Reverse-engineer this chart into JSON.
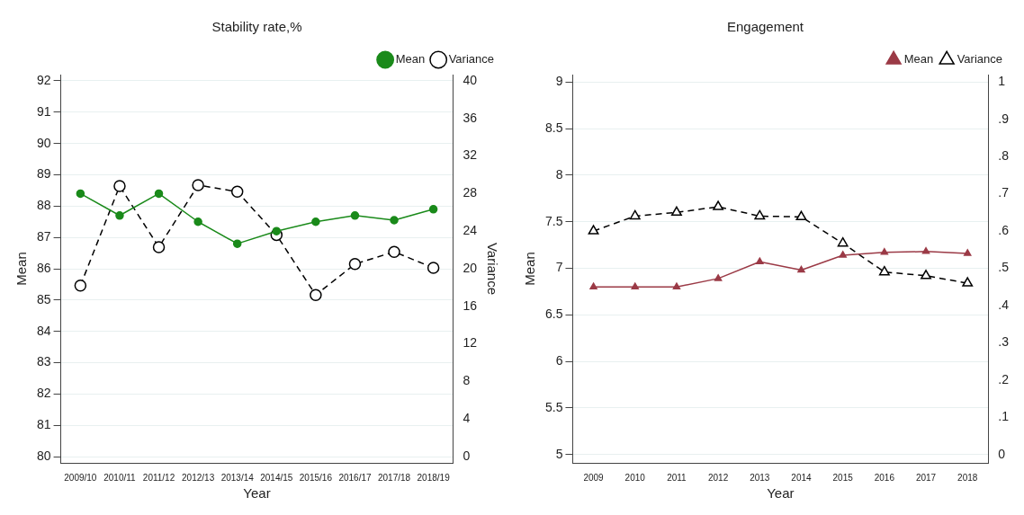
{
  "chart_data": [
    {
      "type": "line",
      "title": "Stability rate,%",
      "xlabel": "Year",
      "ylabel": "Mean",
      "y2label": "Variance",
      "categories": [
        "2009/10",
        "2010/11",
        "2011/12",
        "2012/13",
        "2013/14",
        "2014/15",
        "2015/16",
        "2016/17",
        "2017/18",
        "2018/19"
      ],
      "series": [
        {
          "name": "Mean",
          "color": "#1a8a1a",
          "marker": "circle",
          "line_style": "solid",
          "values": [
            88.4,
            87.7,
            88.4,
            87.5,
            86.8,
            87.2,
            87.5,
            87.7,
            87.55,
            87.9
          ]
        },
        {
          "name": "Variance",
          "color": "#000000",
          "marker": "circle",
          "line_style": "dashed",
          "axis": "y2",
          "values": [
            18.2,
            28.8,
            22.3,
            28.9,
            28.2,
            23.6,
            17.2,
            20.5,
            21.8,
            20.1
          ]
        }
      ],
      "ylim": [
        79.8,
        92.2
      ],
      "yticks": [
        80,
        81,
        82,
        83,
        84,
        85,
        86,
        87,
        88,
        89,
        90,
        91,
        92
      ],
      "y2lim": [
        -0.67,
        40.67
      ],
      "y2ticks": [
        0,
        4,
        8,
        12,
        16,
        20,
        24,
        28,
        32,
        36,
        40
      ],
      "grid": "y",
      "legend": "top right"
    },
    {
      "type": "line",
      "title": "Engagement",
      "xlabel": "Year",
      "ylabel": "Mean",
      "categories": [
        "2009",
        "2010",
        "2011",
        "2012",
        "2013",
        "2014",
        "2015",
        "2016",
        "2017",
        "2018"
      ],
      "series": [
        {
          "name": "Mean",
          "color": "#9b3a46",
          "marker": "triangle",
          "line_style": "solid",
          "values": [
            6.8,
            6.8,
            6.8,
            6.89,
            7.07,
            6.98,
            7.14,
            7.17,
            7.18,
            7.16
          ]
        },
        {
          "name": "Variance",
          "color": "#000000",
          "marker": "triangle",
          "line_style": "dashed",
          "axis": "y2",
          "values": [
            0.6,
            0.64,
            0.65,
            0.665,
            0.64,
            0.638,
            0.567,
            0.49,
            0.48,
            0.46
          ]
        }
      ],
      "ylim": [
        4.91,
        9.08
      ],
      "yticks": [
        5,
        5.5,
        6,
        6.5,
        7,
        7.5,
        8,
        8.5,
        9
      ],
      "y2lim": [
        -0.0225,
        1.02
      ],
      "y2ticks": [
        {
          "value": 0,
          "label": "0"
        },
        {
          "value": 0.1,
          "label": ".1"
        },
        {
          "value": 0.2,
          "label": ".2"
        },
        {
          "value": 0.3,
          "label": ".3"
        },
        {
          "value": 0.4,
          "label": ".4"
        },
        {
          "value": 0.5,
          "label": ".5"
        },
        {
          "value": 0.6,
          "label": ".6"
        },
        {
          "value": 0.7,
          "label": ".7"
        },
        {
          "value": 0.8,
          "label": ".8"
        },
        {
          "value": 0.9,
          "label": ".9"
        },
        {
          "value": 1,
          "label": "1"
        }
      ],
      "grid": "y",
      "legend": "top right"
    }
  ]
}
